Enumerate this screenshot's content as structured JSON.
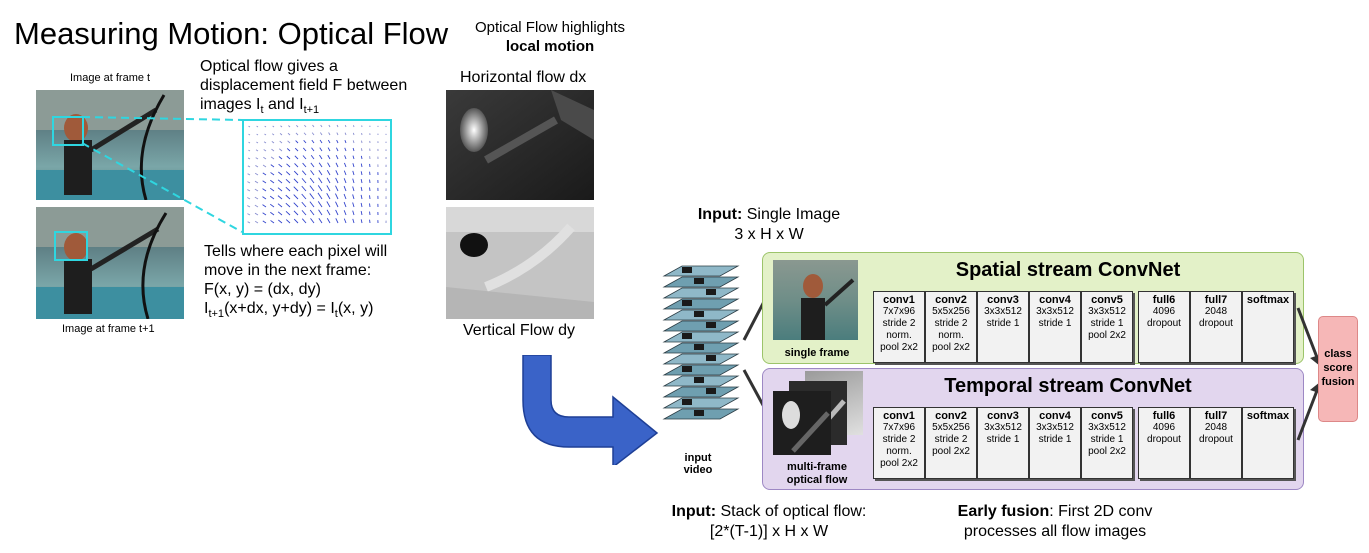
{
  "title": "Measuring Motion: Optical Flow",
  "left": {
    "frame_t_label": "Image at frame t",
    "frame_t1_label": "Image at frame t+1",
    "desc1_line1": "Optical flow gives a",
    "desc1_line2": "displacement field F between",
    "desc1_line3_pre": "images I",
    "desc1_sub_t": "t",
    "desc1_and": " and I",
    "desc1_sub_t1": "t+1",
    "desc2_line1": "Tells where each pixel will",
    "desc2_line2": "move in the next frame:",
    "desc2_line3": "F(x, y) = (dx, dy)",
    "desc2_line4_pre": "I",
    "desc2_sub1": "t+1",
    "desc2_line4_mid": "(x+dx, y+dy) = I",
    "desc2_sub2": "t",
    "desc2_line4_post": "(x, y)"
  },
  "middle": {
    "highlight_line1": "Optical Flow highlights",
    "highlight_line2": "local motion",
    "horizontal_label": "Horizontal flow dx",
    "vertical_label": "Vertical Flow dy"
  },
  "network": {
    "input_top_bold": "Input:",
    "input_top_rest": " Single Image",
    "input_top_dims": "3 x H x W",
    "input_bottom_bold": "Input:",
    "input_bottom_rest": " Stack of optical flow:",
    "input_bottom_dims": "[2*(T-1)] x H x W",
    "early_bold": "Early fusion",
    "early_rest": ": First 2D conv",
    "early_line2": "processes all flow images",
    "input_video_line1": "input",
    "input_video_line2": "video",
    "spatial_title": "Spatial stream ConvNet",
    "temporal_title": "Temporal stream ConvNet",
    "spatial_caption": "single frame",
    "temporal_caption_line1": "multi-frame",
    "temporal_caption_line2": "optical flow",
    "fusion_line1": "class",
    "fusion_line2": "score",
    "fusion_line3": "fusion",
    "spatial_layers": [
      {
        "name": "conv1",
        "l1": "7x7x96",
        "l2": "stride 2",
        "l3": "norm.",
        "l4": "pool 2x2"
      },
      {
        "name": "conv2",
        "l1": "5x5x256",
        "l2": "stride 2",
        "l3": "norm.",
        "l4": "pool 2x2"
      },
      {
        "name": "conv3",
        "l1": "3x3x512",
        "l2": "stride 1",
        "l3": "",
        "l4": ""
      },
      {
        "name": "conv4",
        "l1": "3x3x512",
        "l2": "stride 1",
        "l3": "",
        "l4": ""
      },
      {
        "name": "conv5",
        "l1": "3x3x512",
        "l2": "stride 1",
        "l3": "pool 2x2",
        "l4": ""
      },
      {
        "name": "full6",
        "l1": "4096",
        "l2": "dropout",
        "l3": "",
        "l4": ""
      },
      {
        "name": "full7",
        "l1": "2048",
        "l2": "dropout",
        "l3": "",
        "l4": ""
      },
      {
        "name": "softmax",
        "l1": "",
        "l2": "",
        "l3": "",
        "l4": ""
      }
    ],
    "temporal_layers": [
      {
        "name": "conv1",
        "l1": "7x7x96",
        "l2": "stride 2",
        "l3": "norm.",
        "l4": "pool 2x2"
      },
      {
        "name": "conv2",
        "l1": "5x5x256",
        "l2": "stride 2",
        "l3": "pool 2x2",
        "l4": ""
      },
      {
        "name": "conv3",
        "l1": "3x3x512",
        "l2": "stride 1",
        "l3": "",
        "l4": ""
      },
      {
        "name": "conv4",
        "l1": "3x3x512",
        "l2": "stride 1",
        "l3": "",
        "l4": ""
      },
      {
        "name": "conv5",
        "l1": "3x3x512",
        "l2": "stride 1",
        "l3": "pool 2x2",
        "l4": ""
      },
      {
        "name": "full6",
        "l1": "4096",
        "l2": "dropout",
        "l3": "",
        "l4": ""
      },
      {
        "name": "full7",
        "l1": "2048",
        "l2": "dropout",
        "l3": "",
        "l4": ""
      },
      {
        "name": "softmax",
        "l1": "",
        "l2": "",
        "l3": "",
        "l4": ""
      }
    ]
  },
  "colors": {
    "spatial_bg": "#e3f1c8",
    "spatial_border": "#9cc46a",
    "temporal_bg": "#e2d6ee",
    "temporal_border": "#9d88c4",
    "fusion_bg": "#f6b7b7",
    "cyan": "#2fd6e0",
    "arrow_blue": "#3a63c8",
    "flow_blue": "#3344cc"
  }
}
